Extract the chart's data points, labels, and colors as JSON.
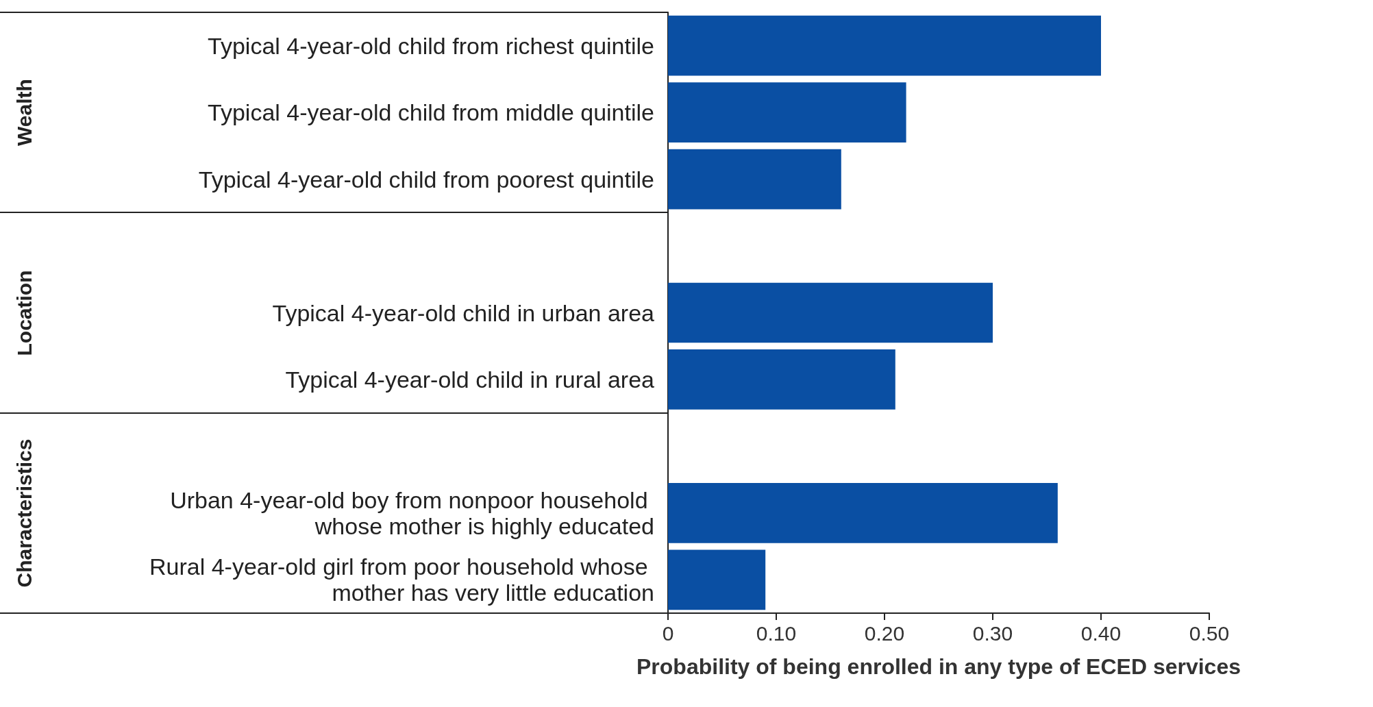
{
  "chart_data": {
    "type": "bar",
    "orientation": "horizontal",
    "categories": [
      "Typical 4-year-old child from richest quintile",
      "Typical 4-year-old child from middle quintile",
      "Typical 4-year-old child from poorest quintile",
      null,
      "Typical 4-year-old child in urban area",
      "Typical 4-year-old child in rural area",
      null,
      "Urban 4-year-old boy from nonpoor household whose mother is highly educated",
      "Rural 4-year-old girl from poor household whose mother has very little education"
    ],
    "values": [
      0.4,
      0.22,
      0.16,
      null,
      0.3,
      0.21,
      null,
      0.36,
      0.09
    ],
    "color": "#0a4fa3",
    "xlim": [
      0,
      0.5
    ],
    "xticks": [
      0,
      {
        "value": 0.1,
        "label": "0.10"
      },
      {
        "value": 0.2,
        "label": "0.20"
      },
      {
        "value": 0.3,
        "label": "0.30"
      },
      {
        "value": 0.4,
        "label": "0.40"
      },
      {
        "value": 0.5,
        "label": "0.50"
      }
    ],
    "xlabel": "Probability of being enrolled in any type of ECED services",
    "annotations": [
      "Wealth",
      "Location",
      "Characteristics"
    ],
    "grid": false
  }
}
